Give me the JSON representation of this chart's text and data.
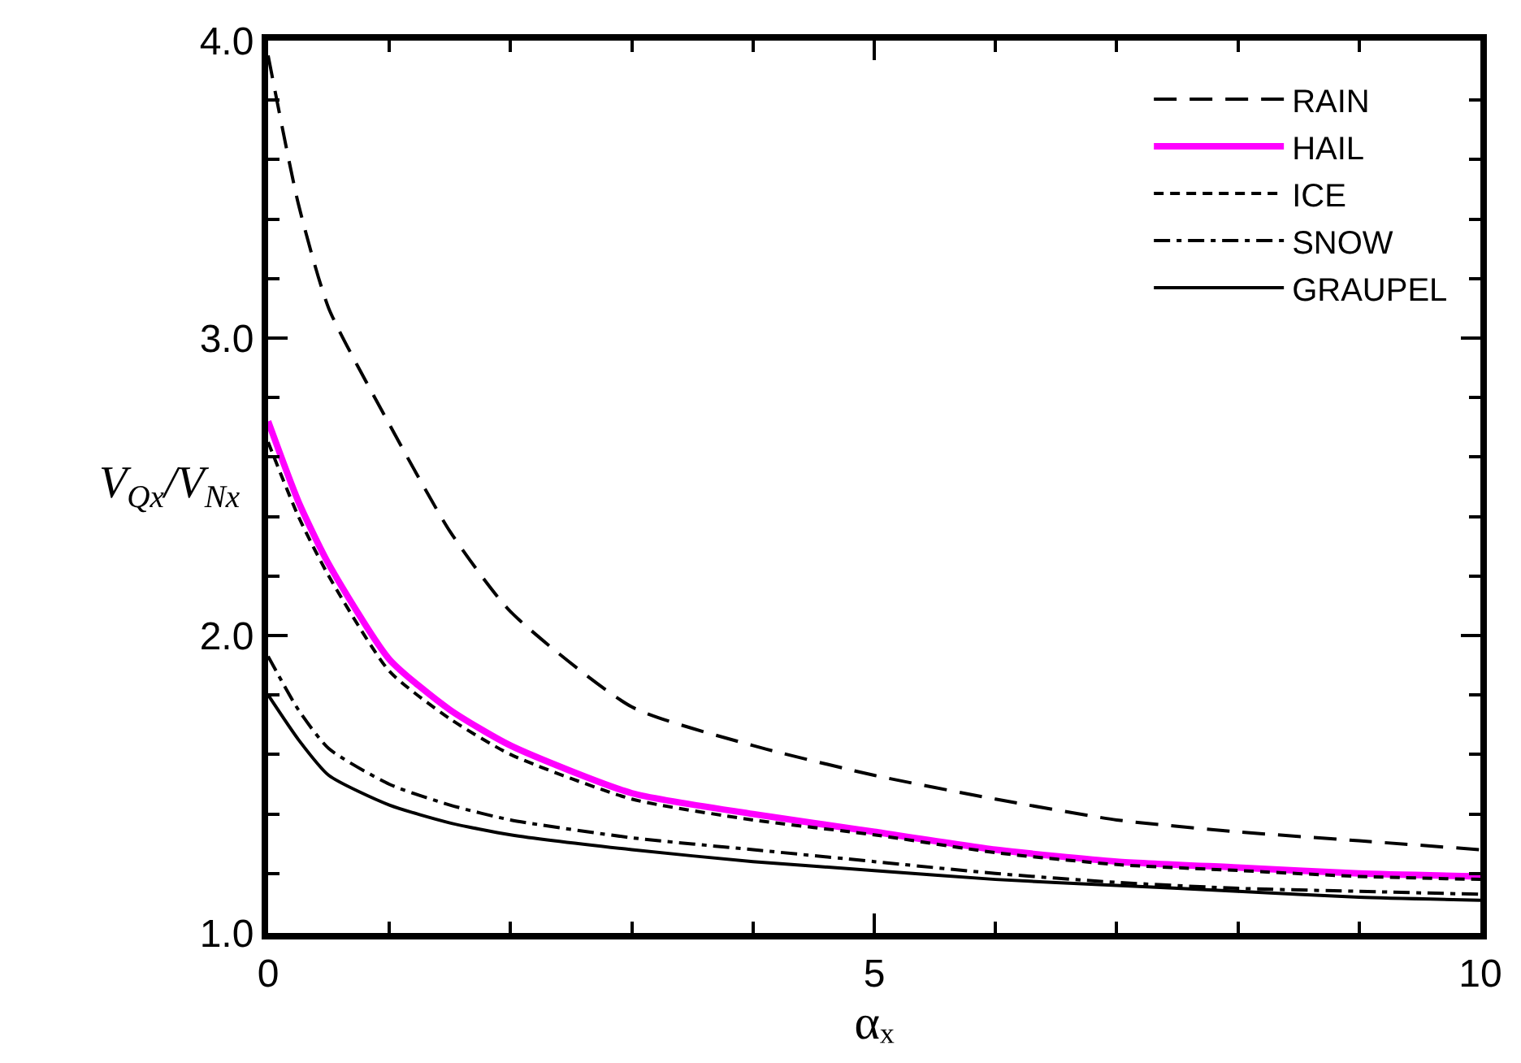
{
  "chart_data": {
    "type": "line",
    "xlabel": "αₓ",
    "ylabel": "V$_{Qx}$/V$_{Nx}$",
    "x": [
      0,
      0.25,
      0.5,
      1,
      1.5,
      2,
      3,
      4,
      5,
      6,
      7,
      8,
      9,
      10
    ],
    "series": [
      {
        "name": "RAIN",
        "color": "#000000",
        "line_style": "long_dashed",
        "values": [
          3.95,
          3.45,
          3.1,
          2.71,
          2.35,
          2.08,
          1.76,
          1.63,
          1.53,
          1.45,
          1.38,
          1.34,
          1.31,
          1.28
        ]
      },
      {
        "name": "HAIL",
        "color": "#ff00ff",
        "line_style": "solid",
        "values": [
          2.72,
          2.45,
          2.24,
          1.92,
          1.75,
          1.63,
          1.47,
          1.4,
          1.34,
          1.28,
          1.24,
          1.22,
          1.2,
          1.19
        ]
      },
      {
        "name": "ICE",
        "color": "#000000",
        "line_style": "dashed",
        "values": [
          2.65,
          2.4,
          2.2,
          1.88,
          1.72,
          1.6,
          1.45,
          1.38,
          1.33,
          1.27,
          1.23,
          1.21,
          1.19,
          1.18
        ]
      },
      {
        "name": "SNOW",
        "color": "#000000",
        "line_style": "dashdot",
        "values": [
          1.93,
          1.75,
          1.62,
          1.5,
          1.43,
          1.38,
          1.32,
          1.28,
          1.24,
          1.2,
          1.17,
          1.15,
          1.14,
          1.13
        ]
      },
      {
        "name": "GRAUPEL",
        "color": "#000000",
        "line_style": "solid",
        "values": [
          1.8,
          1.65,
          1.53,
          1.43,
          1.37,
          1.33,
          1.28,
          1.24,
          1.21,
          1.18,
          1.16,
          1.14,
          1.12,
          1.11
        ]
      }
    ],
    "xlim": [
      0,
      10
    ],
    "ylim": [
      1,
      4
    ],
    "xticks": [
      0,
      {
        "value": 1,
        "label": null
      },
      {
        "value": 2,
        "label": null
      },
      {
        "value": 3,
        "label": null
      },
      {
        "value": 4,
        "label": null
      },
      5,
      {
        "value": 6,
        "label": null
      },
      {
        "value": 7,
        "label": null
      },
      {
        "value": 8,
        "label": null
      },
      {
        "value": 9,
        "label": null
      },
      10
    ],
    "yticks": [
      {
        "value": 1,
        "label": "1.0"
      },
      {
        "value": 1.2,
        "label": null
      },
      {
        "value": 1.4,
        "label": null
      },
      {
        "value": 1.6,
        "label": null
      },
      {
        "value": 1.8,
        "label": null
      },
      {
        "value": 2,
        "label": "2.0"
      },
      {
        "value": 2.2,
        "label": null
      },
      {
        "value": 2.4,
        "label": null
      },
      {
        "value": 2.6,
        "label": null
      },
      {
        "value": 2.8,
        "label": null
      },
      {
        "value": 3,
        "label": "3.0"
      },
      {
        "value": 3.2,
        "label": null
      },
      {
        "value": 3.4,
        "label": null
      },
      {
        "value": 3.6,
        "label": null
      },
      {
        "value": 3.8,
        "label": null
      },
      {
        "value": 4,
        "label": "4.0"
      }
    ],
    "grid": false,
    "legend": "top right",
    "marker": "none"
  }
}
